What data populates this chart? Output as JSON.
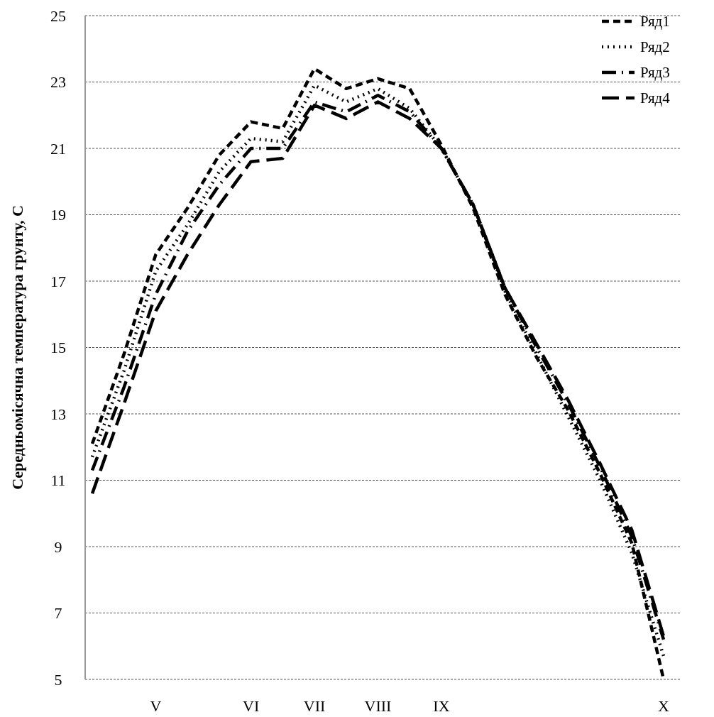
{
  "chart_data": {
    "type": "line",
    "ylabel": "Середньомісячна температура грунту, С",
    "categories": [
      null,
      null,
      "V",
      null,
      null,
      "VI",
      null,
      "VII",
      null,
      "VIII",
      null,
      "IX",
      null,
      null,
      null,
      null,
      null,
      null,
      "X"
    ],
    "ylim": [
      5,
      25
    ],
    "yticks": [
      5,
      7,
      9,
      11,
      13,
      15,
      17,
      19,
      21,
      23,
      25
    ],
    "grid": "y",
    "legend": "top right",
    "series": [
      {
        "name": "Ряд1",
        "color": "#000000",
        "line_style": "dashed",
        "values": [
          12.1,
          14.8,
          17.8,
          19.2,
          20.8,
          21.8,
          21.6,
          23.4,
          22.8,
          23.1,
          22.8,
          21.1,
          19.2,
          16.6,
          14.7,
          13.1,
          11.2,
          9.1,
          5.0
        ]
      },
      {
        "name": "Ряд2",
        "color": "#000000",
        "line_style": "dotted",
        "values": [
          11.7,
          14.3,
          17.3,
          18.7,
          20.3,
          21.3,
          21.2,
          22.9,
          22.4,
          22.8,
          22.2,
          21.0,
          19.3,
          16.7,
          14.8,
          12.9,
          11.0,
          8.8,
          5.7
        ]
      },
      {
        "name": "Ряд3",
        "color": "#000000",
        "line_style": "dashdot",
        "values": [
          11.3,
          13.8,
          16.6,
          18.5,
          19.9,
          21.0,
          21.0,
          22.4,
          22.1,
          22.6,
          22.1,
          21.0,
          19.3,
          16.8,
          15.0,
          13.3,
          11.4,
          9.3,
          6.2
        ]
      },
      {
        "name": "Ряд4",
        "color": "#000000",
        "line_style": "longdash",
        "values": [
          10.6,
          13.3,
          16.1,
          17.8,
          19.3,
          20.6,
          20.7,
          22.3,
          21.9,
          22.4,
          21.9,
          21.0,
          19.3,
          16.8,
          15.1,
          13.4,
          11.5,
          9.5,
          6.3
        ]
      }
    ]
  }
}
